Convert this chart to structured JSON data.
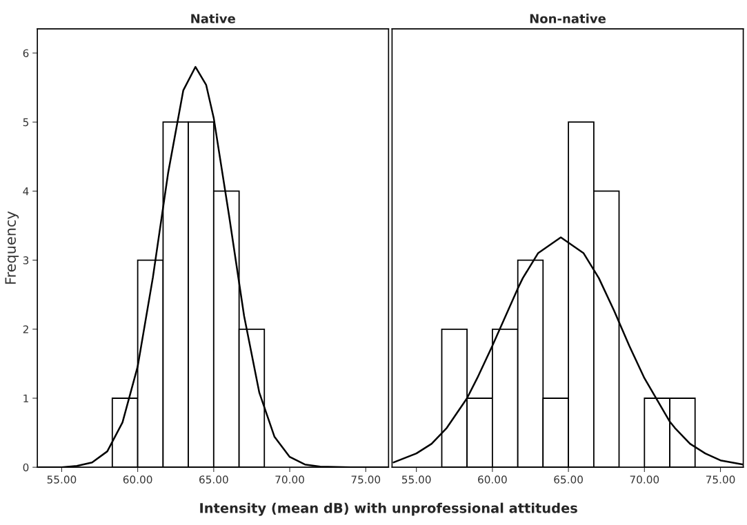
{
  "chart_data": [
    {
      "type": "histogram",
      "title": "Native",
      "ylabel": "Frequency",
      "xlabel": "Intensity (mean dB) with unprofessional attitudes",
      "color": "#ffffff",
      "bins": [
        58.33,
        60.0,
        61.67,
        63.33,
        65.0,
        66.67,
        68.33
      ],
      "values": [
        1,
        3,
        5,
        5,
        4,
        2
      ],
      "series": [
        {
          "type": "line",
          "color": "#000000",
          "x": [
            53.5,
            55,
            56,
            57,
            58,
            59,
            60,
            61,
            62,
            63,
            63.8,
            64.5,
            65,
            66,
            67,
            68,
            69,
            70,
            71,
            72,
            74,
            76.5
          ],
          "values": [
            0,
            0,
            0.02,
            0.07,
            0.23,
            0.65,
            1.46,
            2.75,
            4.26,
            5.46,
            5.8,
            5.54,
            5.06,
            3.66,
            2.19,
            1.08,
            0.44,
            0.15,
            0.04,
            0.01,
            0,
            0
          ]
        }
      ],
      "xlim": [
        53.4,
        76.5
      ],
      "ylim": [
        0,
        6.35
      ],
      "xticks": [
        {
          "value": 55,
          "label": "55.00"
        },
        {
          "value": 60,
          "label": "60.00"
        },
        {
          "value": 65,
          "label": "65.00"
        },
        {
          "value": 70,
          "label": "70.00"
        },
        {
          "value": 75,
          "label": "75.00"
        }
      ],
      "yticks": [
        0,
        1,
        2,
        3,
        4,
        5,
        6
      ],
      "grid": false,
      "legend": false
    },
    {
      "type": "histogram",
      "title": "Non-native",
      "color": "#ffffff",
      "bins": [
        56.67,
        58.33,
        60.0,
        61.67,
        63.33,
        65.0,
        66.67,
        68.33,
        70.0,
        71.67,
        73.33
      ],
      "values": [
        2,
        1,
        2,
        3,
        1,
        5,
        4,
        0,
        1,
        1
      ],
      "series": [
        {
          "type": "line",
          "color": "#000000",
          "x": [
            53.5,
            55,
            56,
            57,
            58.33,
            59,
            60,
            61.67,
            62,
            63,
            64.5,
            66,
            67,
            68,
            69,
            70,
            71.67,
            72,
            73,
            74,
            75,
            76.5
          ],
          "values": [
            0.07,
            0.2,
            0.34,
            0.57,
            1.0,
            1.29,
            1.76,
            2.59,
            2.74,
            3.1,
            3.33,
            3.1,
            2.74,
            2.27,
            1.76,
            1.29,
            0.66,
            0.57,
            0.34,
            0.2,
            0.1,
            0.04
          ]
        }
      ],
      "xlim": [
        53.4,
        76.5
      ],
      "ylim": [
        0,
        6.35
      ],
      "xticks": [
        {
          "value": 55,
          "label": "55.00"
        },
        {
          "value": 60,
          "label": "60.00"
        },
        {
          "value": 65,
          "label": "65.00"
        },
        {
          "value": 70,
          "label": "70.00"
        },
        {
          "value": 75,
          "label": "75.00"
        }
      ],
      "yticks": [
        0,
        1,
        2,
        3,
        4,
        5,
        6
      ],
      "tick_labels": "x",
      "grid": false,
      "legend": false
    }
  ]
}
